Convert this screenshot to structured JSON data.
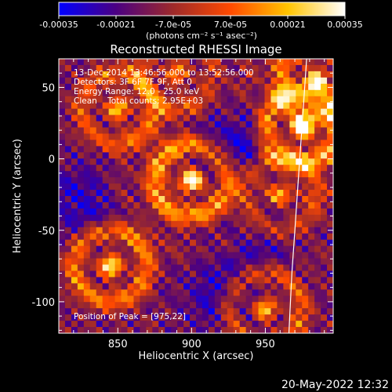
{
  "colorbar": {
    "ticks": [
      "-0.00035",
      "-0.00021",
      "-7.0e-05",
      "7.0e-05",
      "0.00021",
      "0.00035"
    ],
    "unit_label": "(photons cm⁻² s⁻¹ asec⁻²)",
    "colors": [
      "#0000ff",
      "#4b0082",
      "#9e2a2a",
      "#ff4a00",
      "#ffc400",
      "#ffffff"
    ]
  },
  "chart_data": {
    "type": "heatmap",
    "title": "Reconstructed RHESSI Image",
    "xlabel": "Heliocentric X (arcsec)",
    "ylabel": "Heliocentric Y (arcsec)",
    "xlim": [
      810,
      996
    ],
    "ylim": [
      -122,
      70
    ],
    "xticks": [
      850,
      900,
      950
    ],
    "yticks": [
      50,
      0,
      -50,
      -100
    ],
    "vmin": -0.00035,
    "vmax": 0.00035,
    "annotations": [
      "13-Dec-2014 13:46:56.000 to 13:52:56.000",
      "Detectors: 3F 6F 7F 9F, Att 0",
      "Energy Range: 12.0 - 25.0 keV",
      "Clean    Total counts: 2.95E+03"
    ],
    "peak_label": "Position of Peak = [975,22]",
    "peak": [
      975,
      22
    ],
    "limb_curve": [
      [
        978,
        70
      ],
      [
        976,
        40
      ],
      [
        974,
        10
      ],
      [
        972,
        -20
      ],
      [
        970,
        -50
      ],
      [
        968,
        -80
      ],
      [
        966,
        -122
      ]
    ],
    "bright_regions": [
      {
        "x": 900,
        "y": -15,
        "strength": 1.0
      },
      {
        "x": 975,
        "y": 22,
        "strength": 1.0
      },
      {
        "x": 985,
        "y": 55,
        "strength": 0.8
      },
      {
        "x": 845,
        "y": -75,
        "strength": 0.85
      },
      {
        "x": 850,
        "y": 35,
        "strength": 0.65
      },
      {
        "x": 950,
        "y": -105,
        "strength": 0.7
      },
      {
        "x": 890,
        "y": 60,
        "strength": 0.5
      },
      {
        "x": 960,
        "y": -25,
        "strength": 0.55
      }
    ],
    "dark_regions": [
      {
        "x": 930,
        "y": 10,
        "strength": 1.0
      },
      {
        "x": 825,
        "y": -30,
        "strength": 0.7
      },
      {
        "x": 915,
        "y": -95,
        "strength": 0.6
      },
      {
        "x": 945,
        "y": -60,
        "strength": 0.5
      }
    ]
  },
  "footer": {
    "timestamp": "20-May-2022 12:32"
  }
}
